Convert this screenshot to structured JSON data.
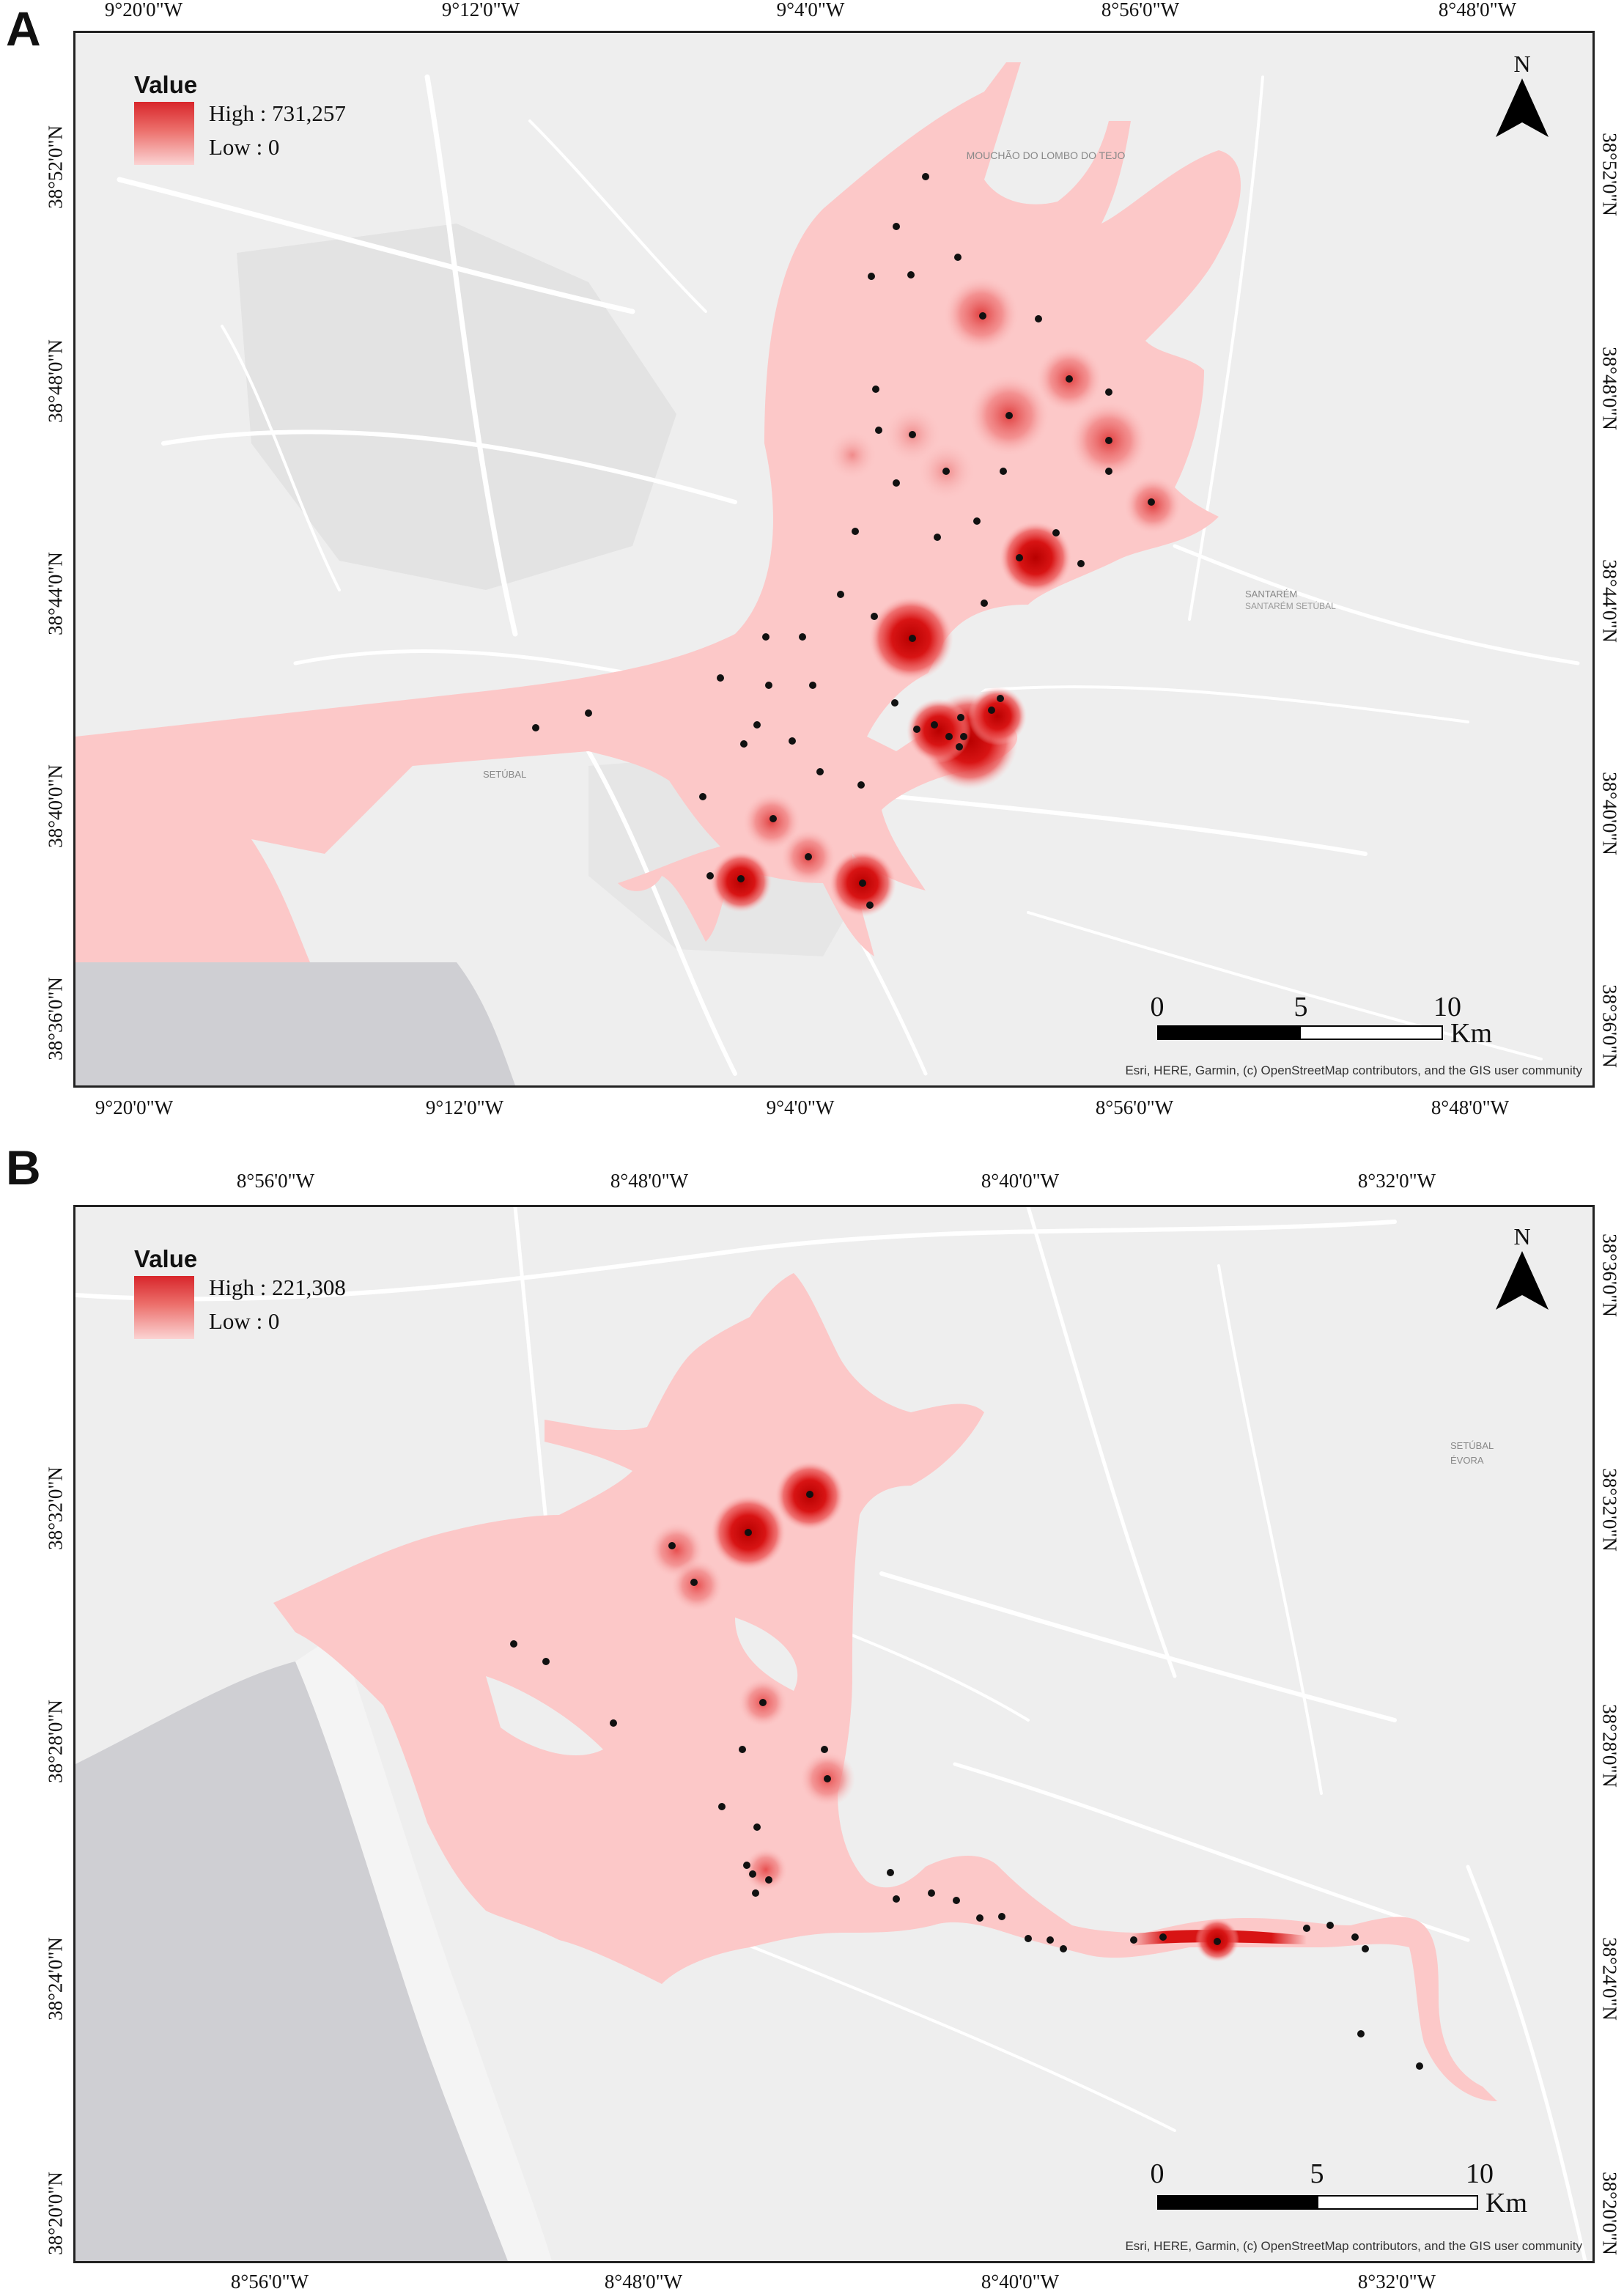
{
  "panels": [
    {
      "letter": "A",
      "legend": {
        "title": "Value",
        "high": "High : 731,257",
        "low": "Low : 0"
      },
      "north": "N",
      "scale": {
        "labels": [
          "0",
          "5",
          "10"
        ],
        "unit": "Km"
      },
      "attribution": "Esri, HERE, Garmin, (c) OpenStreetMap contributors, and the GIS user community",
      "top_ticks": [
        "9°20'0\"W",
        "9°12'0\"W",
        "9°4'0\"W",
        "8°56'0\"W",
        "8°48'0\"W"
      ],
      "bottom_ticks": [
        "9°20'0\"W",
        "9°12'0\"W",
        "9°4'0\"W",
        "8°56'0\"W",
        "8°48'0\"W"
      ],
      "left_ticks": [
        "38°52'0\"N",
        "38°48'0\"N",
        "38°44'0\"N",
        "38°40'0\"N",
        "38°36'0\"N"
      ],
      "right_ticks": [
        "38°52'0\"N",
        "38°48'0\"N",
        "38°44'0\"N",
        "38°40'0\"N",
        "38°36'0\"N"
      ],
      "place_labels": [
        "MOUCHÃO DO LOMBO DO TEJO",
        "SETÚBAL",
        "SANTARÉM",
        "SANTARÉM SETÚBAL"
      ]
    },
    {
      "letter": "B",
      "legend": {
        "title": "Value",
        "high": "High : 221,308",
        "low": "Low : 0"
      },
      "north": "N",
      "scale": {
        "labels": [
          "0",
          "5",
          "10"
        ],
        "unit": "Km"
      },
      "attribution": "Esri, HERE, Garmin, (c) OpenStreetMap contributors, and the GIS user community",
      "top_ticks": [
        "8°56'0\"W",
        "8°48'0\"W",
        "8°40'0\"W",
        "8°32'0\"W"
      ],
      "bottom_ticks": [
        "8°56'0\"W",
        "8°48'0\"W",
        "8°40'0\"W",
        "8°32'0\"W"
      ],
      "left_ticks": [
        "38°32'0\"N",
        "38°28'0\"N",
        "38°24'0\"N",
        "38°20'0\"N"
      ],
      "right_ticks": [
        "38°36'0\"N",
        "38°32'0\"N",
        "38°28'0\"N",
        "38°24'0\"N",
        "38°20'0\"N"
      ],
      "place_labels": [
        "SETÚBAL",
        "ÉVORA"
      ]
    }
  ],
  "colors": {
    "basemap": "#eeeeee",
    "road": "#ffffff",
    "water_density_low": "#fcc8c8",
    "density_high": "#d01010",
    "ocean_grey": "#cfcfd3",
    "sample_point": "#111111"
  }
}
